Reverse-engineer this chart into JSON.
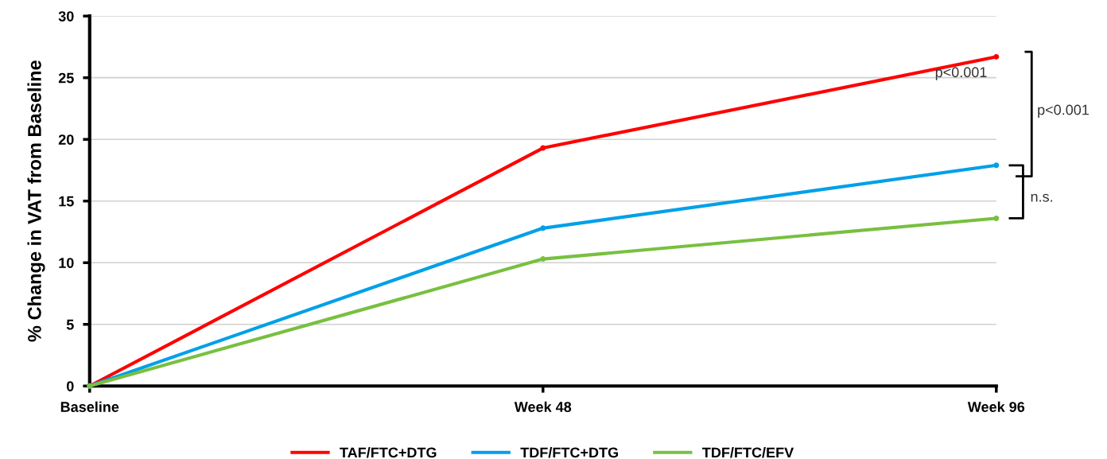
{
  "chart_data": {
    "type": "line",
    "ylabel": "% Change in VAT from Baseline",
    "categories": [
      "Baseline",
      "Week 48",
      "Week 96"
    ],
    "series": [
      {
        "name": "TAF/FTC+DTG",
        "color": "#ff0000",
        "values": [
          0,
          19.3,
          26.7
        ]
      },
      {
        "name": "TDF/FTC+DTG",
        "color": "#00a0e8",
        "values": [
          0,
          12.8,
          17.9
        ]
      },
      {
        "name": "TDF/FTC/EFV",
        "color": "#78c040",
        "values": [
          0,
          10.3,
          13.6
        ]
      }
    ],
    "ylim": [
      0,
      30
    ],
    "yticks": [
      0,
      5,
      10,
      15,
      20,
      25,
      30
    ],
    "grid": "y",
    "legend": "bottom",
    "marker": "circle",
    "line_style": "solid",
    "annotations": [
      "p<0.001",
      "p<0.001",
      "n.s."
    ]
  }
}
